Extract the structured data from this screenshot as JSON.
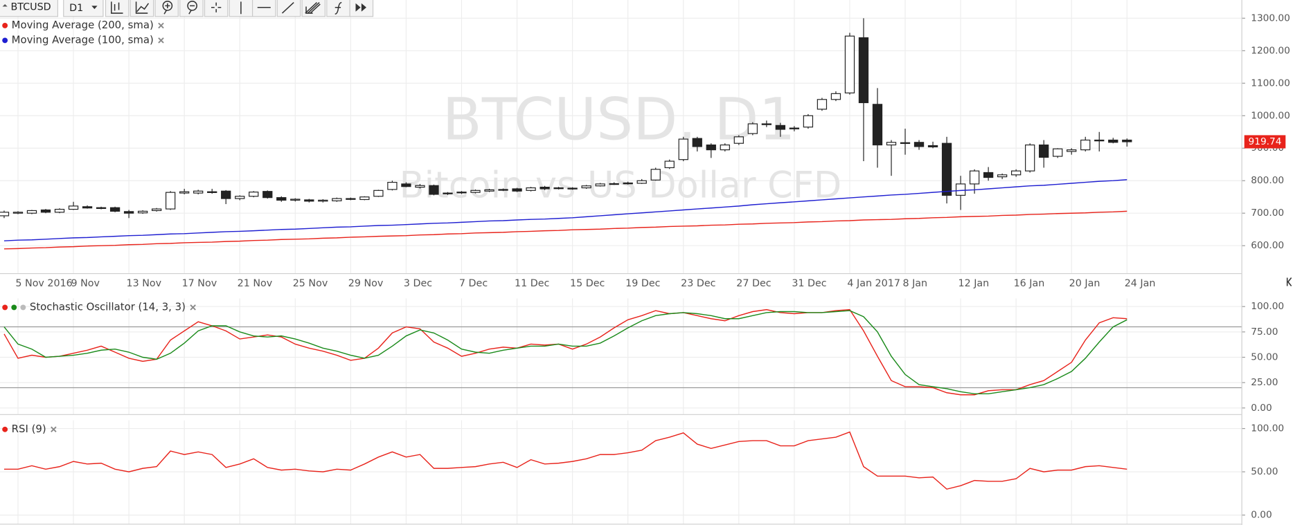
{
  "toolbar": {
    "symbol": "BTCUSD",
    "timeframe": "D1"
  },
  "chart_data": [
    {
      "type": "candlestick",
      "title": "BTCUSD, D1",
      "subtitle": "Bitcoin vs US Dollar CFD",
      "categories": [
        null,
        "5 Nov 2016",
        null,
        null,
        null,
        "9 Nov",
        null,
        null,
        null,
        "13 Nov",
        null,
        null,
        null,
        "17 Nov",
        null,
        null,
        null,
        "21 Nov",
        null,
        null,
        null,
        "25 Nov",
        null,
        null,
        null,
        "29 Nov",
        null,
        null,
        null,
        "3 Dec",
        null,
        null,
        null,
        "7 Dec",
        null,
        null,
        null,
        "11 Dec",
        null,
        null,
        null,
        "15 Dec",
        null,
        null,
        null,
        "19 Dec",
        null,
        null,
        null,
        "23 Dec",
        null,
        null,
        null,
        "27 Dec",
        null,
        null,
        null,
        "31 Dec",
        null,
        null,
        null,
        "4 Jan 2017",
        null,
        null,
        null,
        "8 Jan",
        null,
        null,
        null,
        "12 Jan",
        null,
        null,
        null,
        "16 Jan",
        null,
        null,
        null,
        "20 Jan",
        null,
        null,
        null,
        "24 Jan"
      ],
      "open": [
        692,
        700,
        700,
        710,
        703,
        712,
        720,
        716,
        717,
        705,
        701,
        708,
        713,
        762,
        762,
        766,
        768,
        745,
        752,
        767,
        748,
        740,
        741,
        737,
        738,
        745,
        742,
        752,
        773,
        790,
        780,
        785,
        760,
        763,
        764,
        768,
        771,
        775,
        770,
        780,
        778,
        777,
        778,
        784,
        790,
        791,
        792,
        802,
        840,
        865,
        930,
        910,
        895,
        915,
        945,
        975,
        970,
        960,
        965,
        1020,
        1050,
        1070,
        1240,
        1035,
        910,
        915,
        918,
        908,
        915,
        755,
        790,
        825,
        812,
        818,
        830,
        910,
        875,
        890,
        895,
        925,
        925,
        925
      ],
      "high": [
        708,
        706,
        710,
        713,
        715,
        735,
        724,
        720,
        720,
        710,
        709,
        716,
        768,
        775,
        772,
        775,
        771,
        755,
        768,
        770,
        752,
        746,
        744,
        743,
        748,
        748,
        752,
        772,
        800,
        795,
        790,
        788,
        765,
        768,
        773,
        775,
        776,
        778,
        781,
        784,
        781,
        780,
        787,
        793,
        795,
        797,
        805,
        840,
        865,
        935,
        935,
        915,
        915,
        940,
        980,
        985,
        978,
        968,
        1005,
        1055,
        1075,
        1255,
        1300,
        1085,
        925,
        960,
        925,
        920,
        935,
        815,
        835,
        842,
        822,
        835,
        915,
        925,
        900,
        900,
        935,
        950,
        932,
        930
      ],
      "low": [
        685,
        697,
        697,
        700,
        700,
        710,
        714,
        712,
        703,
        685,
        698,
        705,
        710,
        758,
        758,
        760,
        728,
        740,
        749,
        745,
        735,
        736,
        733,
        733,
        735,
        740,
        740,
        750,
        770,
        780,
        776,
        755,
        756,
        759,
        761,
        765,
        768,
        765,
        767,
        771,
        773,
        772,
        775,
        782,
        787,
        788,
        790,
        800,
        836,
        860,
        890,
        870,
        890,
        910,
        940,
        965,
        935,
        952,
        960,
        1015,
        1045,
        1065,
        860,
        840,
        815,
        880,
        895,
        900,
        730,
        710,
        760,
        800,
        805,
        812,
        825,
        840,
        870,
        880,
        890,
        890,
        915,
        905
      ],
      "close": [
        703,
        703,
        708,
        703,
        712,
        722,
        716,
        717,
        706,
        700,
        706,
        713,
        764,
        766,
        768,
        764,
        745,
        752,
        765,
        748,
        740,
        743,
        737,
        740,
        745,
        743,
        750,
        770,
        795,
        782,
        785,
        758,
        762,
        765,
        770,
        772,
        773,
        768,
        778,
        775,
        777,
        775,
        784,
        790,
        791,
        793,
        800,
        835,
        860,
        928,
        905,
        895,
        910,
        935,
        975,
        973,
        958,
        962,
        1000,
        1050,
        1068,
        1245,
        1040,
        910,
        918,
        917,
        905,
        904,
        755,
        790,
        830,
        810,
        818,
        830,
        910,
        872,
        898,
        895,
        925,
        923,
        918,
        919.74
      ],
      "up_color": "#ffffff",
      "down_color": "#222222",
      "series": [
        {
          "name": "Moving Average (200, sma)",
          "color": "#e8231b",
          "values": [
            590,
            591,
            593,
            594,
            596,
            597,
            599,
            600,
            601,
            603,
            604,
            606,
            607,
            609,
            610,
            611,
            613,
            614,
            616,
            617,
            619,
            620,
            621,
            623,
            624,
            626,
            627,
            629,
            630,
            631,
            633,
            634,
            636,
            637,
            639,
            640,
            641,
            643,
            644,
            646,
            647,
            649,
            650,
            651,
            653,
            654,
            656,
            657,
            659,
            660,
            661,
            663,
            664,
            666,
            667,
            669,
            670,
            671,
            673,
            674,
            676,
            677,
            679,
            680,
            681,
            683,
            684,
            686,
            687,
            689,
            690,
            691,
            693,
            694,
            696,
            697,
            699,
            700,
            701,
            703,
            704,
            706
          ]
        },
        {
          "name": "Moving Average (100, sma)",
          "color": "#1f1fd1",
          "values": [
            615,
            617,
            618,
            620,
            622,
            624,
            625,
            627,
            629,
            631,
            632,
            634,
            636,
            637,
            639,
            641,
            643,
            644,
            646,
            648,
            650,
            651,
            653,
            655,
            657,
            658,
            660,
            662,
            663,
            665,
            667,
            669,
            670,
            672,
            674,
            676,
            677,
            679,
            681,
            682,
            684,
            686,
            689,
            692,
            695,
            698,
            701,
            704,
            707,
            710,
            713,
            716,
            719,
            722,
            726,
            729,
            732,
            735,
            738,
            741,
            744,
            747,
            750,
            753,
            756,
            758,
            761,
            764,
            767,
            770,
            772,
            775,
            778,
            781,
            784,
            786,
            789,
            792,
            795,
            798,
            800,
            803
          ]
        }
      ],
      "ylim": [
        514,
        1356
      ],
      "yticks": [
        {
          "value": 600,
          "label": "600.00"
        },
        {
          "value": 700,
          "label": "700.00"
        },
        {
          "value": 800,
          "label": "800.00"
        },
        {
          "value": 900,
          "label": "900.00"
        },
        {
          "value": 1000,
          "label": "1000.00"
        },
        {
          "value": 1100,
          "label": "1100.00"
        },
        {
          "value": 1200,
          "label": "1200.00"
        },
        {
          "value": 1300,
          "label": "1300.00"
        }
      ],
      "grid": true
    },
    {
      "type": "line",
      "title": "Stochastic Oscillator (14, 3, 3)",
      "series": [
        {
          "color": "#e8231b",
          "values": [
            73,
            49,
            52,
            50,
            51,
            54,
            57,
            61,
            55,
            49,
            46,
            48,
            67,
            76,
            85,
            81,
            76,
            68,
            70,
            72,
            70,
            63,
            59,
            56,
            52,
            47,
            49,
            59,
            74,
            80,
            78,
            65,
            59,
            51,
            54,
            58,
            60,
            59,
            63,
            62,
            63,
            58,
            63,
            70,
            79,
            87,
            91,
            96,
            93,
            94,
            91,
            88,
            86,
            91,
            95,
            97,
            94,
            93,
            94,
            94,
            96,
            97,
            76,
            51,
            27,
            21,
            21,
            20,
            15,
            13,
            13,
            17,
            18,
            18,
            23,
            27,
            36,
            45,
            67,
            84,
            89,
            88
          ]
        },
        {
          "color": "#1a8a1a",
          "values": [
            80,
            63,
            58,
            50,
            51,
            52,
            54,
            57,
            58,
            55,
            50,
            48,
            54,
            64,
            76,
            81,
            81,
            75,
            71,
            70,
            71,
            68,
            64,
            59,
            56,
            52,
            49,
            52,
            61,
            71,
            77,
            74,
            67,
            58,
            55,
            54,
            57,
            59,
            61,
            61,
            63,
            61,
            61,
            64,
            71,
            79,
            86,
            91,
            93,
            94,
            93,
            91,
            88,
            88,
            91,
            94,
            95,
            95,
            94,
            94,
            95,
            96,
            90,
            75,
            51,
            33,
            23,
            21,
            19,
            16,
            14,
            14,
            16,
            18,
            20,
            23,
            29,
            36,
            49,
            65,
            80,
            87
          ]
        }
      ],
      "levels": [
        80,
        20
      ],
      "ylim": [
        -6.5,
        108.1
      ],
      "yticks": [
        {
          "value": 0,
          "label": "0.00"
        },
        {
          "value": 25,
          "label": "25.00"
        },
        {
          "value": 50,
          "label": "50.00"
        },
        {
          "value": 75,
          "label": "75.00"
        },
        {
          "value": 100,
          "label": "100.00"
        }
      ],
      "grid": true
    },
    {
      "type": "line",
      "title": "RSI (9)",
      "series": [
        {
          "color": "#e8231b",
          "values": [
            53,
            53,
            57,
            53,
            56,
            62,
            59,
            60,
            53,
            50,
            54,
            56,
            74,
            70,
            73,
            70,
            55,
            59,
            65,
            55,
            52,
            53,
            51,
            50,
            53,
            52,
            59,
            67,
            73,
            67,
            70,
            54,
            54,
            55,
            56,
            59,
            61,
            55,
            64,
            59,
            60,
            62,
            65,
            70,
            70,
            72,
            75,
            86,
            90,
            95,
            82,
            77,
            81,
            85,
            86,
            86,
            80,
            80,
            86,
            88,
            90,
            96,
            56,
            45,
            45,
            45,
            43,
            44,
            30,
            34,
            40,
            39,
            39,
            42,
            54,
            50,
            52,
            52,
            56,
            57,
            55,
            53
          ]
        }
      ],
      "ylim": [
        -10.5,
        109.5
      ],
      "yticks": [
        {
          "value": 0,
          "label": "0.00"
        },
        {
          "value": 50,
          "label": "50.00"
        },
        {
          "value": 100,
          "label": "100.00"
        }
      ],
      "grid": true
    }
  ]
}
